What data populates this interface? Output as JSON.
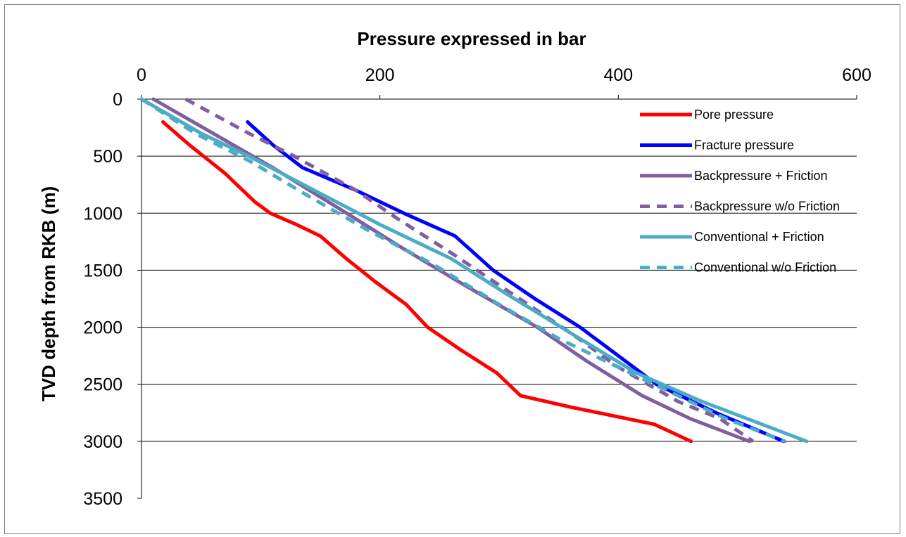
{
  "chart_data": {
    "type": "line",
    "title": "Pressure expressed in bar",
    "xlabel": "",
    "ylabel": "TVD depth from RKB (m)",
    "xlim": [
      0,
      600
    ],
    "ylim": [
      0,
      3500
    ],
    "y_reversed": true,
    "x_axis_position": "top",
    "x_ticks": [
      "0",
      "200",
      "400",
      "600"
    ],
    "y_ticks": [
      "0",
      "500",
      "1000",
      "1500",
      "2000",
      "2500",
      "3000",
      "3500"
    ],
    "grid": "horizontal",
    "legend_position": "top-right",
    "series": [
      {
        "name": "Pore pressure",
        "color": "#ff0000",
        "dash": "solid",
        "points": [
          [
            18,
            200
          ],
          [
            40,
            400
          ],
          [
            70,
            650
          ],
          [
            95,
            900
          ],
          [
            108,
            1000
          ],
          [
            130,
            1100
          ],
          [
            150,
            1200
          ],
          [
            172,
            1400
          ],
          [
            196,
            1600
          ],
          [
            222,
            1800
          ],
          [
            240,
            2000
          ],
          [
            268,
            2200
          ],
          [
            298,
            2400
          ],
          [
            318,
            2600
          ],
          [
            360,
            2700
          ],
          [
            430,
            2850
          ],
          [
            461,
            3000
          ]
        ]
      },
      {
        "name": "Fracture pressure",
        "color": "#0000ff",
        "dash": "solid",
        "points": [
          [
            89,
            200
          ],
          [
            110,
            400
          ],
          [
            135,
            600
          ],
          [
            180,
            800
          ],
          [
            220,
            1000
          ],
          [
            263,
            1200
          ],
          [
            295,
            1500
          ],
          [
            330,
            1750
          ],
          [
            368,
            2000
          ],
          [
            400,
            2250
          ],
          [
            432,
            2500
          ],
          [
            482,
            2750
          ],
          [
            539,
            3000
          ]
        ]
      },
      {
        "name": "Backpressure + Friction",
        "color": "#7f5fa0",
        "dash": "solid",
        "points": [
          [
            10,
            0
          ],
          [
            60,
            300
          ],
          [
            110,
            600
          ],
          [
            172,
            1000
          ],
          [
            218,
            1300
          ],
          [
            266,
            1600
          ],
          [
            332,
            2000
          ],
          [
            374,
            2300
          ],
          [
            420,
            2600
          ],
          [
            460,
            2800
          ],
          [
            510,
            3000
          ]
        ]
      },
      {
        "name": "Backpressure w/o Friction",
        "color": "#7f5fa0",
        "dash": "dashed",
        "points": [
          [
            37,
            0
          ],
          [
            90,
            300
          ],
          [
            128,
            500
          ],
          [
            180,
            800
          ],
          [
            215,
            1050
          ],
          [
            260,
            1350
          ],
          [
            310,
            1700
          ],
          [
            360,
            2050
          ],
          [
            400,
            2350
          ],
          [
            450,
            2650
          ],
          [
            485,
            2800
          ],
          [
            513,
            3000
          ]
        ]
      },
      {
        "name": "Conventional + Friction",
        "color": "#4bacc6",
        "dash": "solid",
        "points": [
          [
            0,
            0
          ],
          [
            50,
            300
          ],
          [
            90,
            500
          ],
          [
            145,
            800
          ],
          [
            200,
            1100
          ],
          [
            260,
            1400
          ],
          [
            305,
            1700
          ],
          [
            360,
            2050
          ],
          [
            415,
            2400
          ],
          [
            470,
            2650
          ],
          [
            558,
            3000
          ]
        ]
      },
      {
        "name": "Conventional w/o Friction",
        "color": "#4bacc6",
        "dash": "dashed",
        "points": [
          [
            0,
            0
          ],
          [
            45,
            300
          ],
          [
            92,
            550
          ],
          [
            140,
            850
          ],
          [
            190,
            1150
          ],
          [
            245,
            1450
          ],
          [
            300,
            1800
          ],
          [
            350,
            2100
          ],
          [
            400,
            2350
          ],
          [
            440,
            2550
          ],
          [
            490,
            2800
          ],
          [
            540,
            3000
          ]
        ]
      }
    ]
  }
}
